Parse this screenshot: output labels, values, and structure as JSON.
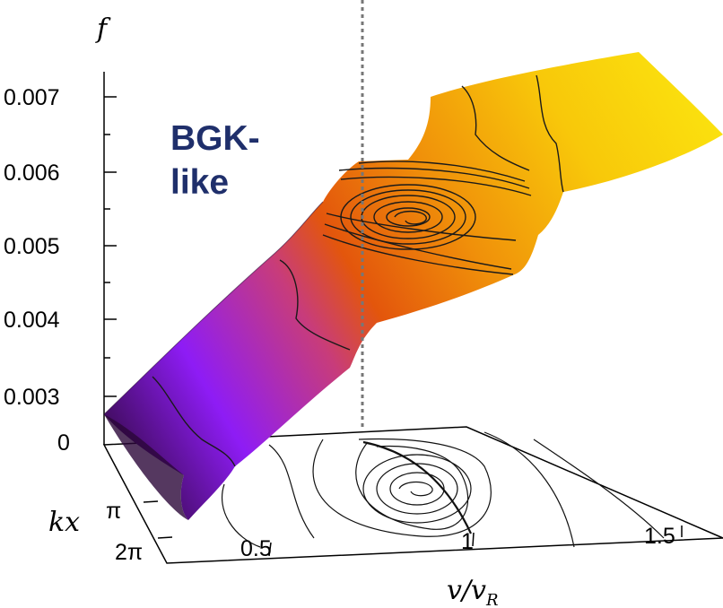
{
  "chart_data": {
    "type": "surface",
    "zlabel": "f",
    "xlabel": "v/v_R",
    "ylabel": "kx",
    "z_ticks": [
      "0.007",
      "0.006",
      "0.005",
      "0.004",
      "0.003",
      "0"
    ],
    "x_ticks": [
      "0.5",
      "1",
      "1.5"
    ],
    "y_ticks": [
      "π",
      "2π"
    ],
    "zlim": [
      0,
      0.0075
    ],
    "annotation": [
      "BGK-",
      "like"
    ],
    "colormap": [
      "#3a0b52",
      "#8e1cf5",
      "#c83c7a",
      "#e85a0a",
      "#f29a0a",
      "#fbe10a"
    ],
    "guide_line": "dotted vertical at v/v_R ≈ 0.75",
    "x_values": [
      0.3,
      0.75,
      0.88,
      1.0,
      1.12,
      1.25,
      1.5,
      1.7
    ],
    "f_values": [
      0.0027,
      0.0044,
      0.0054,
      0.0055,
      0.0056,
      0.0061,
      0.0068,
      0.0072
    ]
  }
}
